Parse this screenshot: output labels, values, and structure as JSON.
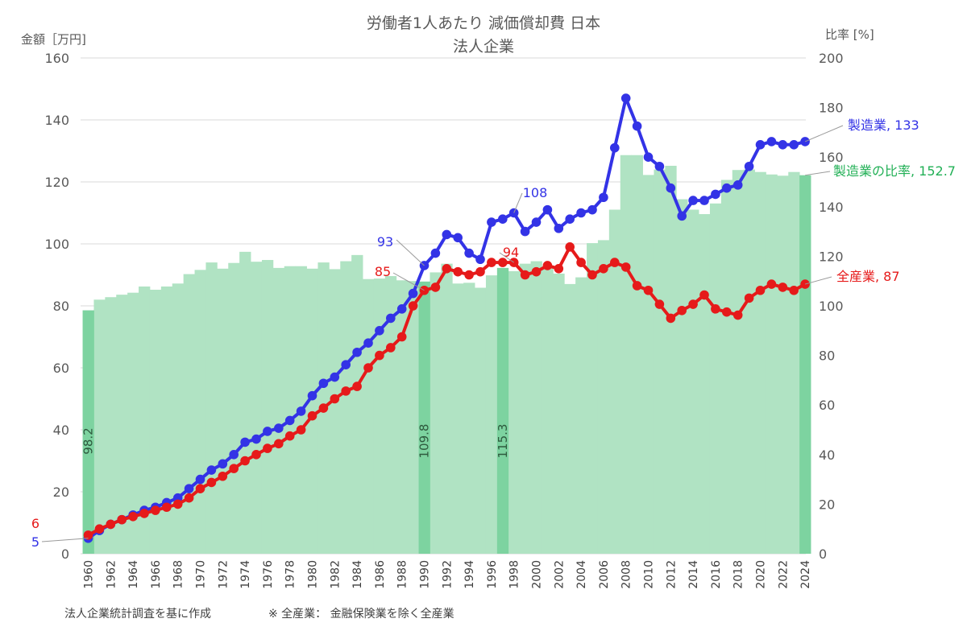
{
  "chart_data": {
    "type": "bar+line",
    "title": "労働者1人あたり 減価償却費 日本",
    "subtitle": "法人企業",
    "y_left_label": "金額［万円]",
    "y_right_label": "比率 [%]",
    "y_left_range": [
      0,
      160
    ],
    "y_right_range": [
      0,
      200
    ],
    "y_left_ticks": [
      0,
      20,
      40,
      60,
      80,
      100,
      120,
      140,
      160
    ],
    "y_right_ticks": [
      0,
      20,
      40,
      60,
      80,
      100,
      120,
      140,
      160,
      180,
      200
    ],
    "x_tick_labels": [
      "1960",
      "1962",
      "1964",
      "1966",
      "1968",
      "1970",
      "1972",
      "1974",
      "1976",
      "1978",
      "1980",
      "1982",
      "1984",
      "1986",
      "1988",
      "1990",
      "1992",
      "1994",
      "1996",
      "1998",
      "2000",
      "2002",
      "2004",
      "2006",
      "2008",
      "2010",
      "2012",
      "2014",
      "2016",
      "2018",
      "2020",
      "2022",
      "2024"
    ],
    "years": [
      1960,
      1961,
      1962,
      1963,
      1964,
      1965,
      1966,
      1967,
      1968,
      1969,
      1970,
      1971,
      1972,
      1973,
      1974,
      1975,
      1976,
      1977,
      1978,
      1979,
      1980,
      1981,
      1982,
      1983,
      1984,
      1985,
      1986,
      1987,
      1988,
      1989,
      1990,
      1991,
      1992,
      1993,
      1994,
      1995,
      1996,
      1997,
      1998,
      1999,
      2000,
      2001,
      2002,
      2003,
      2004,
      2005,
      2006,
      2007,
      2008,
      2009,
      2010,
      2011,
      2012,
      2013,
      2014,
      2015,
      2016,
      2017,
      2018,
      2019,
      2020,
      2021,
      2022,
      2023,
      2024
    ],
    "series": [
      {
        "name": "製造業の比率",
        "axis": "right",
        "kind": "bar",
        "color": "#b0e3c3",
        "values": [
          98.2,
          102.5,
          103.5,
          104.5,
          105.3,
          107.8,
          106.5,
          107.8,
          109,
          112.8,
          114.5,
          117.5,
          115,
          117.3,
          121.8,
          117.8,
          118.5,
          115.3,
          116,
          116,
          115,
          117.5,
          114.8,
          118,
          120.5,
          110.8,
          111,
          112,
          110.3,
          110,
          109.8,
          113.5,
          117,
          109,
          109.3,
          107.3,
          112.3,
          115.3,
          114,
          117,
          118,
          115.5,
          113,
          108.8,
          111.5,
          125.3,
          126.5,
          138.8,
          160.8,
          160.8,
          152.8,
          155,
          156.5,
          143,
          138.8,
          137,
          141.3,
          150.8,
          154.8,
          155,
          154,
          153,
          152.5,
          154,
          152.7
        ]
      },
      {
        "name": "製造業",
        "axis": "left",
        "kind": "line",
        "color": "#3333e6",
        "values": [
          5,
          7.5,
          9.5,
          11,
          12.5,
          14,
          15,
          16.5,
          18,
          21,
          24,
          27,
          29,
          32,
          36,
          37,
          39.5,
          40.5,
          43,
          46,
          51,
          55,
          57,
          61,
          65,
          68,
          72,
          76,
          79,
          84,
          93,
          97,
          103,
          102,
          97,
          95,
          107,
          108,
          110,
          104,
          107,
          111,
          105,
          108,
          110,
          111,
          115,
          131,
          147,
          138,
          128,
          125,
          118,
          109,
          114,
          114,
          116,
          118,
          119,
          125,
          132,
          133,
          132,
          132,
          133
        ]
      },
      {
        "name": "全産業",
        "axis": "left",
        "kind": "line",
        "color": "#e61a1a",
        "values": [
          6,
          8,
          9.5,
          11,
          12,
          13,
          14,
          15,
          16,
          18,
          21,
          23,
          25,
          27.5,
          30,
          32,
          34,
          35.5,
          38,
          40,
          44.5,
          47,
          50,
          52.5,
          54,
          60,
          64,
          66.5,
          70,
          80,
          85,
          86,
          92,
          91,
          90,
          91,
          94,
          94,
          94,
          90,
          91,
          93,
          92,
          99,
          94,
          90,
          92,
          94,
          92.5,
          86.5,
          85,
          80.5,
          76,
          78.5,
          80.5,
          83.5,
          79,
          78,
          77,
          82.5,
          85,
          87,
          86,
          85,
          87
        ]
      }
    ],
    "highlighted_bars": [
      {
        "year": 1960,
        "label": "98.2"
      },
      {
        "year": 1990,
        "label": "109.8"
      },
      {
        "year": 1997,
        "label": "115.3"
      },
      {
        "year": 2024,
        "label": ""
      }
    ],
    "annotations": {
      "mfg_1960": "5",
      "all_1960": "6",
      "mfg_1990": "93",
      "all_1990": "85",
      "mfg_1997": "108",
      "all_1997": "94",
      "mfg_end": "製造業, 133",
      "ratio_end": "製造業の比率, 152.7",
      "all_end": "全産業, 87"
    },
    "footer_left": "法人企業統計調査を基に作成",
    "footer_right": "※ 全産業：  金融保険業を除く全産業"
  }
}
